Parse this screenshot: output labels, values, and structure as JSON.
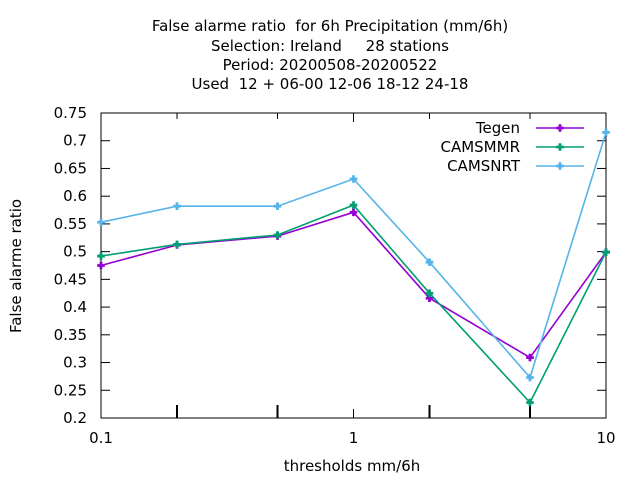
{
  "chart_data": {
    "type": "line",
    "title": [
      "False alarme ratio  for 6h Precipitation (mm/6h)",
      "Selection: Ireland     28 stations",
      "Period: 20200508-20200522",
      "Used  12 + 06-00 12-06 18-12 24-18"
    ],
    "xlabel": "thresholds mm/6h",
    "ylabel": "False alarme ratio",
    "xscale": "log",
    "xlim": [
      0.1,
      10
    ],
    "ylim": [
      0.2,
      0.75
    ],
    "x_ticks": [
      {
        "value": 0.1,
        "label": "0.1"
      },
      {
        "value": 1,
        "label": "1"
      },
      {
        "value": 10,
        "label": "10"
      }
    ],
    "x_minor_ticks": [
      0.2,
      0.5,
      2,
      5
    ],
    "y_ticks": [
      {
        "value": 0.2,
        "label": "0.2"
      },
      {
        "value": 0.25,
        "label": "0.25"
      },
      {
        "value": 0.3,
        "label": "0.3"
      },
      {
        "value": 0.35,
        "label": "0.35"
      },
      {
        "value": 0.4,
        "label": "0.4"
      },
      {
        "value": 0.45,
        "label": "0.45"
      },
      {
        "value": 0.5,
        "label": "0.5"
      },
      {
        "value": 0.55,
        "label": "0.55"
      },
      {
        "value": 0.6,
        "label": "0.6"
      },
      {
        "value": 0.65,
        "label": "0.65"
      },
      {
        "value": 0.7,
        "label": "0.7"
      },
      {
        "value": 0.75,
        "label": "0.75"
      }
    ],
    "grid": false,
    "legend_position": "top-right",
    "x": [
      0.1,
      0.2,
      0.5,
      1,
      2,
      5,
      10
    ],
    "series": [
      {
        "name": "Tegen",
        "color": "#9400d3",
        "values": [
          0.475,
          0.512,
          0.528,
          0.571,
          0.416,
          0.309,
          0.499
        ]
      },
      {
        "name": "CAMSMMR",
        "color": "#009e73",
        "values": [
          0.492,
          0.513,
          0.53,
          0.584,
          0.425,
          0.228,
          0.499
        ]
      },
      {
        "name": "CAMSNRT",
        "color": "#56b4e9",
        "values": [
          0.553,
          0.582,
          0.582,
          0.631,
          0.481,
          0.273,
          0.715
        ]
      }
    ]
  }
}
